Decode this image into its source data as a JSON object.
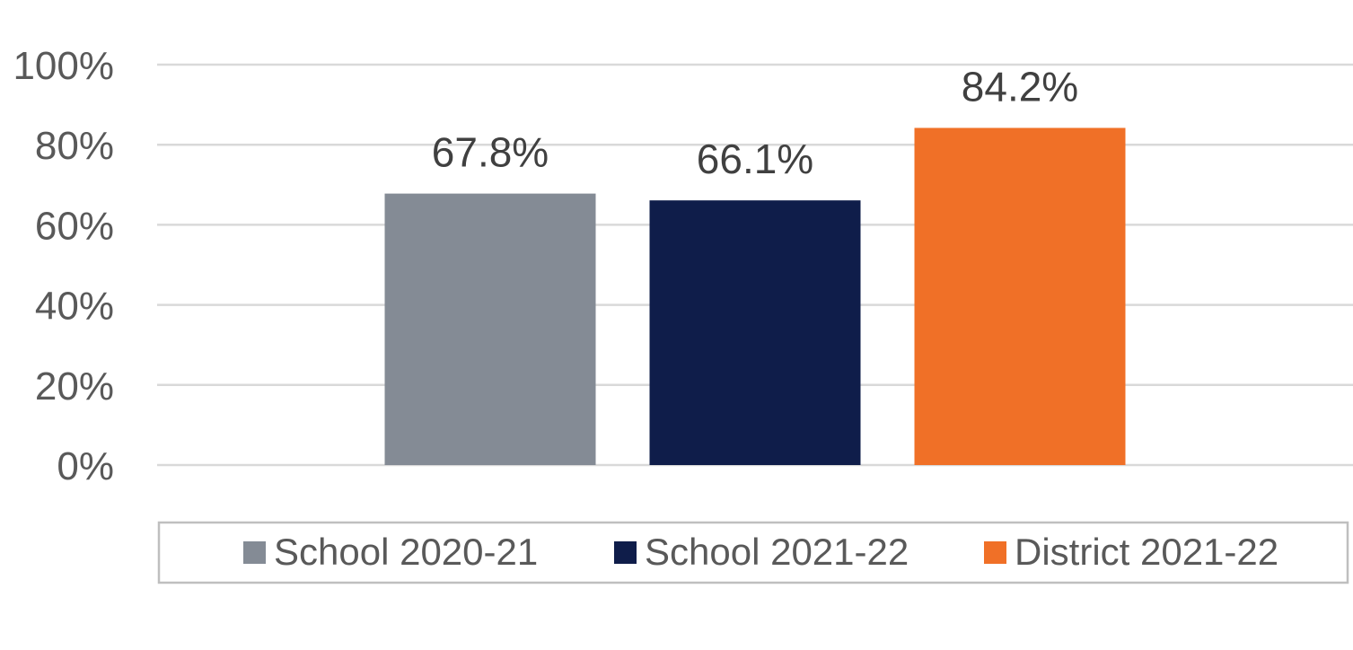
{
  "chart_data": {
    "type": "bar",
    "categories": [
      ""
    ],
    "series": [
      {
        "name": "School 2020-21",
        "values": [
          67.8
        ],
        "color": "#848b95"
      },
      {
        "name": "School 2021-22",
        "values": [
          66.1
        ],
        "color": "#0f1d4a"
      },
      {
        "name": "District 2021-22",
        "values": [
          84.2
        ],
        "color": "#f07027"
      }
    ],
    "data_labels": [
      "67.8%",
      "66.1%",
      "84.2%"
    ],
    "yticks": [
      "0%",
      "20%",
      "40%",
      "60%",
      "80%",
      "100%"
    ],
    "ylim": [
      0,
      100
    ],
    "grid": true,
    "legend_position": "bottom"
  }
}
